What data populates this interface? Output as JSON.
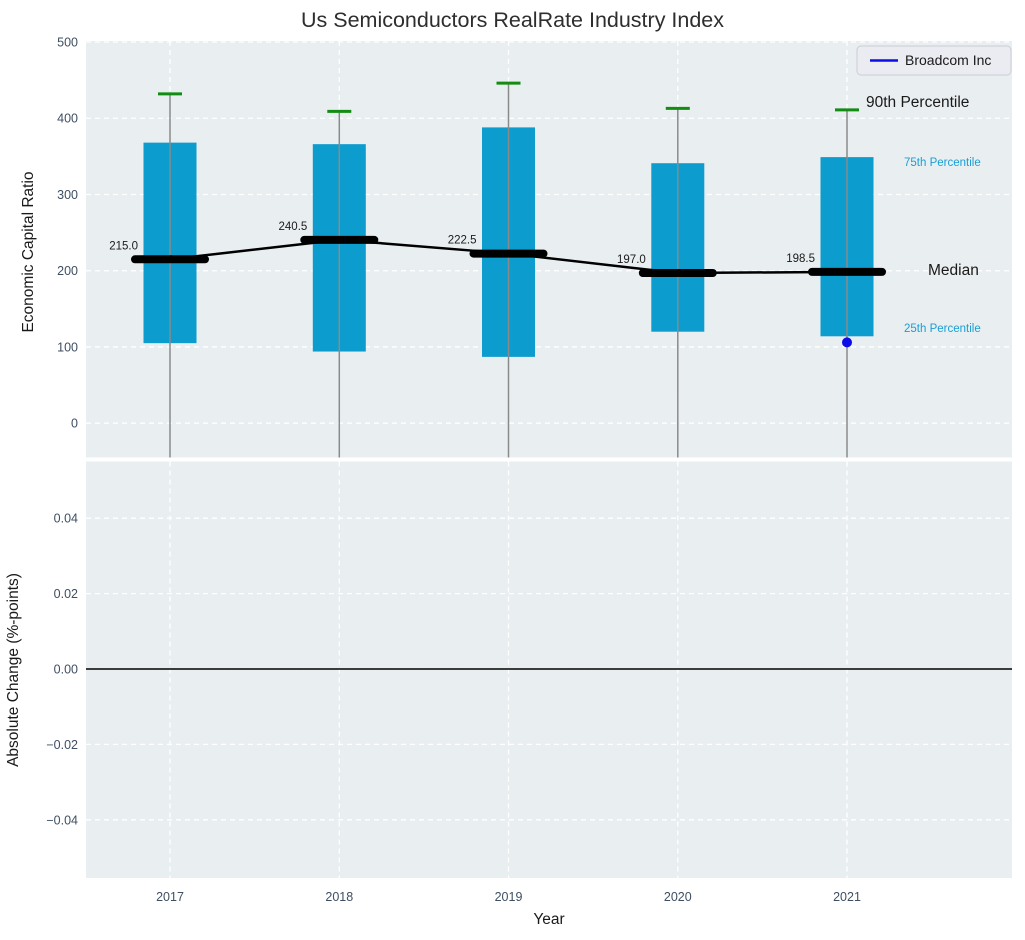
{
  "chart_data": {
    "type": "boxplot",
    "title": "Us Semiconductors RealRate Industry Index",
    "legend": {
      "label": "Broadcom Inc",
      "position": "top-right"
    },
    "colors": {
      "box": "#0c9ccd",
      "whisker": "#8a8a8a",
      "cap_green": "#128c12",
      "median_black": "#000000",
      "broadcom_blue": "#0c0ce8",
      "panel_bg": "#e9eef0",
      "grid": "#ffffff",
      "tick_text": "#3e4e63",
      "annotation_cyan": "#199fd6",
      "annotation_black": "#1a1a1a"
    },
    "top_panel": {
      "ylabel": "Economic Capital Ratio",
      "ylim": [
        -46,
        501
      ],
      "grid": "dashed-white",
      "yticks": [
        {
          "v": 500,
          "label": "500"
        },
        {
          "v": 400,
          "label": "400"
        },
        {
          "v": 300,
          "label": "300"
        },
        {
          "v": 200,
          "label": "200"
        },
        {
          "v": 100,
          "label": "100"
        },
        {
          "v": 0,
          "label": "0"
        }
      ],
      "years": [
        {
          "label": "2017",
          "median": 215.0,
          "median_label": "215.0",
          "q25": 105,
          "q75": 368,
          "p90": 432
        },
        {
          "label": "2018",
          "median": 240.5,
          "median_label": "240.5",
          "q25": 94,
          "q75": 366,
          "p90": 409
        },
        {
          "label": "2019",
          "median": 222.5,
          "median_label": "222.5",
          "q25": 87,
          "q75": 388,
          "p90": 446
        },
        {
          "label": "2020",
          "median": 197.0,
          "median_label": "197.0",
          "q25": 120,
          "q75": 341,
          "p90": 413
        },
        {
          "label": "2021",
          "median": 198.5,
          "median_label": "198.5",
          "q25": 114,
          "q75": 349,
          "p90": 411
        }
      ],
      "broadcom_point": {
        "series": "Broadcom Inc",
        "year": "2021",
        "value": 106
      },
      "annotations": {
        "p90": "90th Percentile",
        "p75": "75th Percentile",
        "median": "Median",
        "p25": "25th Percentile"
      }
    },
    "bottom_panel": {
      "ylabel": "Absolute Change (%-points)",
      "xlabel": "Year",
      "ylim": [
        -0.055,
        0.055
      ],
      "zero_line": 0.0,
      "yticks": [
        {
          "v": 0.04,
          "label": "0.04"
        },
        {
          "v": 0.02,
          "label": "0.02"
        },
        {
          "v": 0.0,
          "label": "0.00"
        },
        {
          "v": -0.02,
          "label": "−0.02"
        },
        {
          "v": -0.04,
          "label": "−0.04"
        }
      ]
    }
  }
}
